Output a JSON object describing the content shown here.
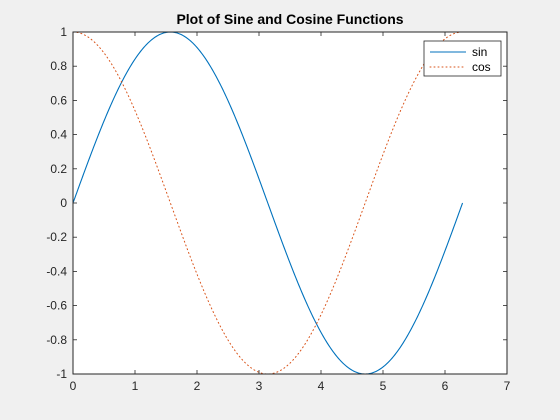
{
  "chart_data": {
    "type": "line",
    "title": "Plot of Sine and Cosine Functions",
    "xlabel": "",
    "ylabel": "",
    "xlim": [
      0,
      7
    ],
    "ylim": [
      -1,
      1
    ],
    "xticks": [
      0,
      1,
      2,
      3,
      4,
      5,
      6,
      7
    ],
    "yticks": [
      -1,
      -0.8,
      -0.6,
      -0.4,
      -0.2,
      0,
      0.2,
      0.4,
      0.6,
      0.8,
      1
    ],
    "xtick_labels": [
      "0",
      "1",
      "2",
      "3",
      "4",
      "5",
      "6",
      "7"
    ],
    "ytick_labels": [
      "-1",
      "-0.8",
      "-0.6",
      "-0.4",
      "-0.2",
      "0",
      "0.2",
      "0.4",
      "0.6",
      "0.8",
      "1"
    ],
    "grid": false,
    "legend_position": "top-right",
    "background_color": "#f0f0f0",
    "axes_color": "#ffffff",
    "series": [
      {
        "name": "sin",
        "color": "#0072bd",
        "line_style": "solid",
        "x": [
          0,
          0.2513,
          0.5027,
          0.754,
          1.0053,
          1.2566,
          1.508,
          1.7593,
          2.0106,
          2.2619,
          2.5133,
          2.7646,
          3.0159,
          3.2673,
          3.5186,
          3.7699,
          4.0212,
          4.2726,
          4.5239,
          4.7752,
          5.0265,
          5.2779,
          5.5292,
          5.7805,
          6.0319,
          6.2832
        ],
        "y": [
          0,
          0.2487,
          0.4818,
          0.6845,
          0.8443,
          0.9511,
          0.998,
          0.9823,
          0.9048,
          0.7705,
          0.5878,
          0.3681,
          0.1253,
          -0.1253,
          -0.3681,
          -0.5878,
          -0.7705,
          -0.9048,
          -0.9823,
          -0.998,
          -0.9511,
          -0.8443,
          -0.6845,
          -0.4818,
          -0.2487,
          0
        ]
      },
      {
        "name": "cos",
        "color": "#d95319",
        "line_style": "dotted",
        "x": [
          0,
          0.2513,
          0.5027,
          0.754,
          1.0053,
          1.2566,
          1.508,
          1.7593,
          2.0106,
          2.2619,
          2.5133,
          2.7646,
          3.0159,
          3.2673,
          3.5186,
          3.7699,
          4.0212,
          4.2726,
          4.5239,
          4.7752,
          5.0265,
          5.2779,
          5.5292,
          5.7805,
          6.0319,
          6.2832
        ],
        "y": [
          1,
          0.9686,
          0.8763,
          0.729,
          0.5358,
          0.309,
          0.0628,
          -0.1874,
          -0.4258,
          -0.6374,
          -0.809,
          -0.9298,
          -0.9921,
          -0.9921,
          -0.9298,
          -0.809,
          -0.6374,
          -0.4258,
          -0.1874,
          0.0628,
          0.309,
          0.5358,
          0.729,
          0.8763,
          0.9686,
          1
        ]
      }
    ]
  }
}
